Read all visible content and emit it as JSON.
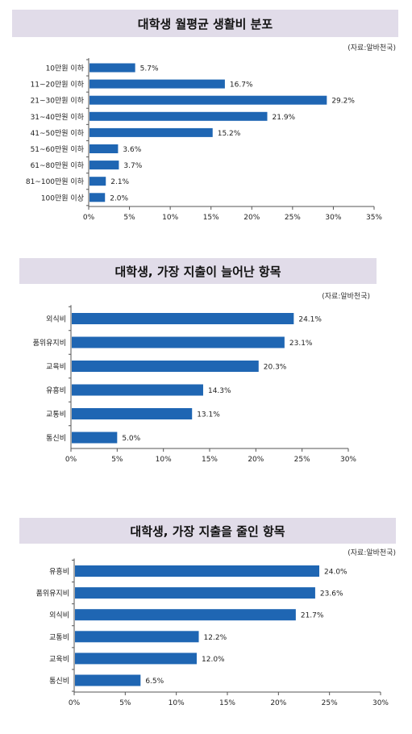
{
  "chart_data": [
    {
      "type": "bar",
      "orientation": "horizontal",
      "title": "대학생 월평균 생활비 분포",
      "source": "(자료:알바천국)",
      "categories": [
        "10만원 이하",
        "11~20만원 이하",
        "21~30만원 이하",
        "31~40만원 이하",
        "41~50만원 이하",
        "51~60만원 이하",
        "61~80만원 이하",
        "81~100만원 이하",
        "100만원 이상"
      ],
      "values": [
        5.7,
        16.7,
        29.2,
        21.9,
        15.2,
        3.6,
        3.7,
        2.1,
        2.0
      ],
      "value_labels": [
        "5.7%",
        "16.7%",
        "29.2%",
        "21.9%",
        "15.2%",
        "3.6%",
        "3.7%",
        "2.1%",
        "2.0%"
      ],
      "xlim": [
        0,
        35
      ],
      "xticks": [
        0,
        5,
        10,
        15,
        20,
        25,
        30,
        35
      ],
      "xtick_labels": [
        "0%",
        "5%",
        "10%",
        "15%",
        "20%",
        "25%",
        "30%",
        "35%"
      ],
      "grid": false,
      "bar_color": "#1f66b3"
    },
    {
      "type": "bar",
      "orientation": "horizontal",
      "title": "대학생, 가장 지출이 늘어난 항목",
      "source": "(자료:알바천국)",
      "categories": [
        "외식비",
        "품위유지비",
        "교육비",
        "유흥비",
        "교통비",
        "통신비"
      ],
      "values": [
        24.1,
        23.1,
        20.3,
        14.3,
        13.1,
        5.0
      ],
      "value_labels": [
        "24.1%",
        "23.1%",
        "20.3%",
        "14.3%",
        "13.1%",
        "5.0%"
      ],
      "xlim": [
        0,
        30
      ],
      "xticks": [
        0,
        5,
        10,
        15,
        20,
        25,
        30
      ],
      "xtick_labels": [
        "0%",
        "5%",
        "10%",
        "15%",
        "20%",
        "25%",
        "30%"
      ],
      "grid": false,
      "bar_color": "#1f66b3"
    },
    {
      "type": "bar",
      "orientation": "horizontal",
      "title": "대학생, 가장 지출을 줄인 항목",
      "source": "(자료:알바천국)",
      "categories": [
        "유흥비",
        "품위유지비",
        "외식비",
        "교통비",
        "교육비",
        "통신비"
      ],
      "values": [
        24.0,
        23.6,
        21.7,
        12.2,
        12.0,
        6.5
      ],
      "value_labels": [
        "24.0%",
        "23.6%",
        "21.7%",
        "12.2%",
        "12.0%",
        "6.5%"
      ],
      "xlim": [
        0,
        30
      ],
      "xticks": [
        0,
        5,
        10,
        15,
        20,
        25,
        30
      ],
      "xtick_labels": [
        "0%",
        "5%",
        "10%",
        "15%",
        "20%",
        "25%",
        "30%"
      ],
      "grid": false,
      "bar_color": "#1f66b3"
    }
  ]
}
